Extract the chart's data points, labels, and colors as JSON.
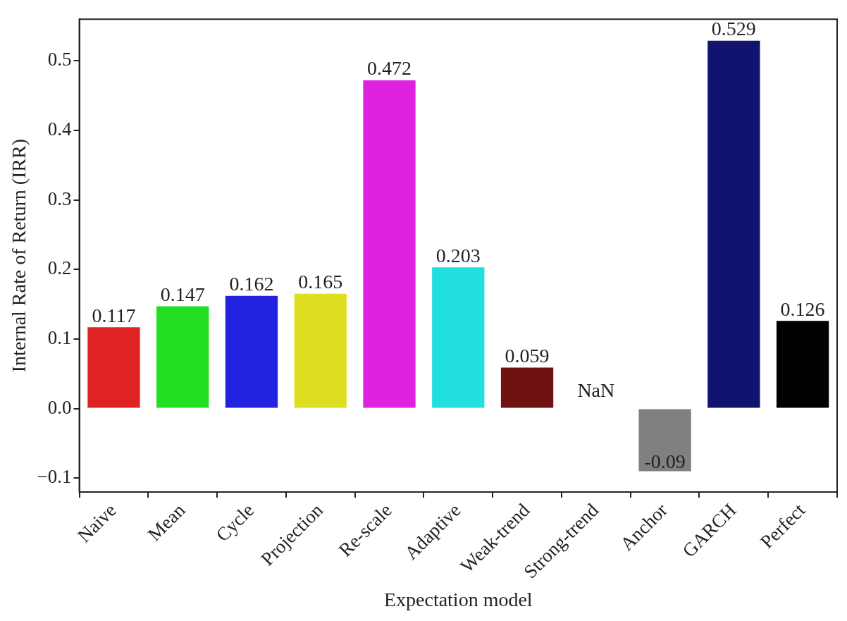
{
  "chart_data": {
    "type": "bar",
    "xlabel": "Expectation model",
    "ylabel": "Internal Rate of Return (IRR)",
    "categories": [
      "Naive",
      "Mean",
      "Cycle",
      "Projection",
      "Re-scale",
      "Adaptive",
      "Weak-trend",
      "Strong-trend",
      "Anchor",
      "GARCH",
      "Perfect"
    ],
    "values": [
      0.117,
      0.147,
      0.162,
      0.165,
      0.472,
      0.203,
      0.059,
      null,
      -0.09,
      0.529,
      0.126
    ],
    "colors": [
      "#df2222",
      "#22df22",
      "#2222df",
      "#dfdf22",
      "#df22df",
      "#22dfdf",
      "#701212",
      "#808080",
      "#808080",
      "#121270",
      "#000000"
    ],
    "value_labels": [
      "0.117",
      "0.147",
      "0.162",
      "0.165",
      "0.472",
      "0.203",
      "0.059",
      "NaN",
      "-0.09",
      "0.529",
      "0.126"
    ],
    "ylim": [
      -0.12,
      0.56
    ],
    "yticks": [
      {
        "value": -0.1,
        "label": "−0.1"
      },
      {
        "value": 0,
        "label": "0.0"
      },
      0.1,
      0.2,
      0.3,
      0.4,
      0.5
    ],
    "grid": false,
    "legend": false
  }
}
